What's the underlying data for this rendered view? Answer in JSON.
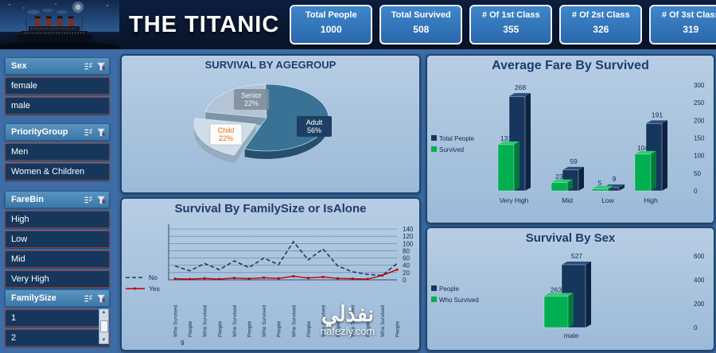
{
  "header": {
    "title": "THE TITANIC",
    "kpis": [
      {
        "label": "Total People",
        "value": "1000"
      },
      {
        "label": "Total Survived",
        "value": "508"
      },
      {
        "label": "# Of 1st Class",
        "value": "355"
      },
      {
        "label": "# Of 2st Class",
        "value": "326"
      },
      {
        "label": "# Of 3st Class",
        "value": "319"
      }
    ]
  },
  "slicers": [
    {
      "title": "Sex",
      "items": [
        "female",
        "male"
      ]
    },
    {
      "title": "PriorityGroup",
      "items": [
        "Men",
        "Women & Children"
      ]
    },
    {
      "title": "FareBin",
      "items": [
        "High",
        "Low",
        "Mid",
        "Very High"
      ]
    },
    {
      "title": "FamilySize",
      "items": [
        "1",
        "2"
      ],
      "scrollbar": {
        "up": "▲",
        "down": "▼"
      }
    }
  ],
  "slicer_icons": [
    "multi-select-icon",
    "clear-filter-icon"
  ],
  "chart_data": [
    {
      "type": "pie",
      "title": "SURVIVAL BY AGEGROUP",
      "labels": [
        "Adult",
        "Senior",
        "Child"
      ],
      "values": [
        56,
        22,
        22
      ],
      "unit": "%",
      "style": "3d-exploded"
    },
    {
      "type": "line",
      "title": "Survival By FamilySize or IsAlone",
      "x": [
        "Who Survived",
        "People",
        "Who Survived",
        "People",
        "Who Survived",
        "People",
        "Who Survived",
        "People",
        "Who Survived",
        "People",
        "Who Survived",
        "People",
        "Who Survived",
        "People",
        "Who Survived",
        "People"
      ],
      "group_labels": [
        "9",
        "",
        "",
        "",
        "",
        "",
        "",
        ""
      ],
      "series": [
        {
          "name": "No",
          "values": [
            38,
            25,
            45,
            28,
            52,
            34,
            60,
            42,
            105,
            55,
            85,
            38,
            22,
            15,
            12,
            45
          ]
        },
        {
          "name": "Yes",
          "values": [
            3,
            2,
            4,
            2,
            5,
            3,
            6,
            4,
            10,
            5,
            8,
            4,
            3,
            2,
            12,
            28
          ]
        }
      ],
      "ylim": [
        0,
        140
      ],
      "ystep": 20,
      "legend_position": "left",
      "value_axis": "right",
      "grid": true
    },
    {
      "type": "bar",
      "title": "Average Fare By Survived",
      "categories": [
        "Very High",
        "Mid",
        "Low",
        "High"
      ],
      "series": [
        {
          "name": "Total People",
          "values": [
            268,
            59,
            9,
            191
          ]
        },
        {
          "name": "Survived",
          "values": [
            131,
            23,
            5,
            104
          ]
        }
      ],
      "ylim": [
        0,
        300
      ],
      "yticks": [
        0,
        50,
        100,
        150,
        200,
        250,
        300
      ],
      "legend_position": "left",
      "value_axis": "right",
      "style": "3d"
    },
    {
      "type": "bar",
      "title": "Survival By Sex",
      "categories": [
        "male"
      ],
      "series": [
        {
          "name": "People",
          "values": [
            527
          ]
        },
        {
          "name": "Who Survived",
          "values": [
            263
          ]
        }
      ],
      "ylim": [
        0,
        600
      ],
      "yticks": [
        0,
        200,
        400,
        600
      ],
      "legend_position": "left",
      "value_axis": "right",
      "style": "3d"
    }
  ],
  "watermark": {
    "title": "نفذلي",
    "site": "nafezly.com"
  },
  "colors": {
    "accent_navy": "#17365d",
    "accent_green": "#00b050",
    "accent_red": "#c00000",
    "kpi_blue": "#2e74b5",
    "panel_blue": "#a9c4de",
    "background": "#3d6ca6",
    "header_bg": "#0a1a38"
  }
}
